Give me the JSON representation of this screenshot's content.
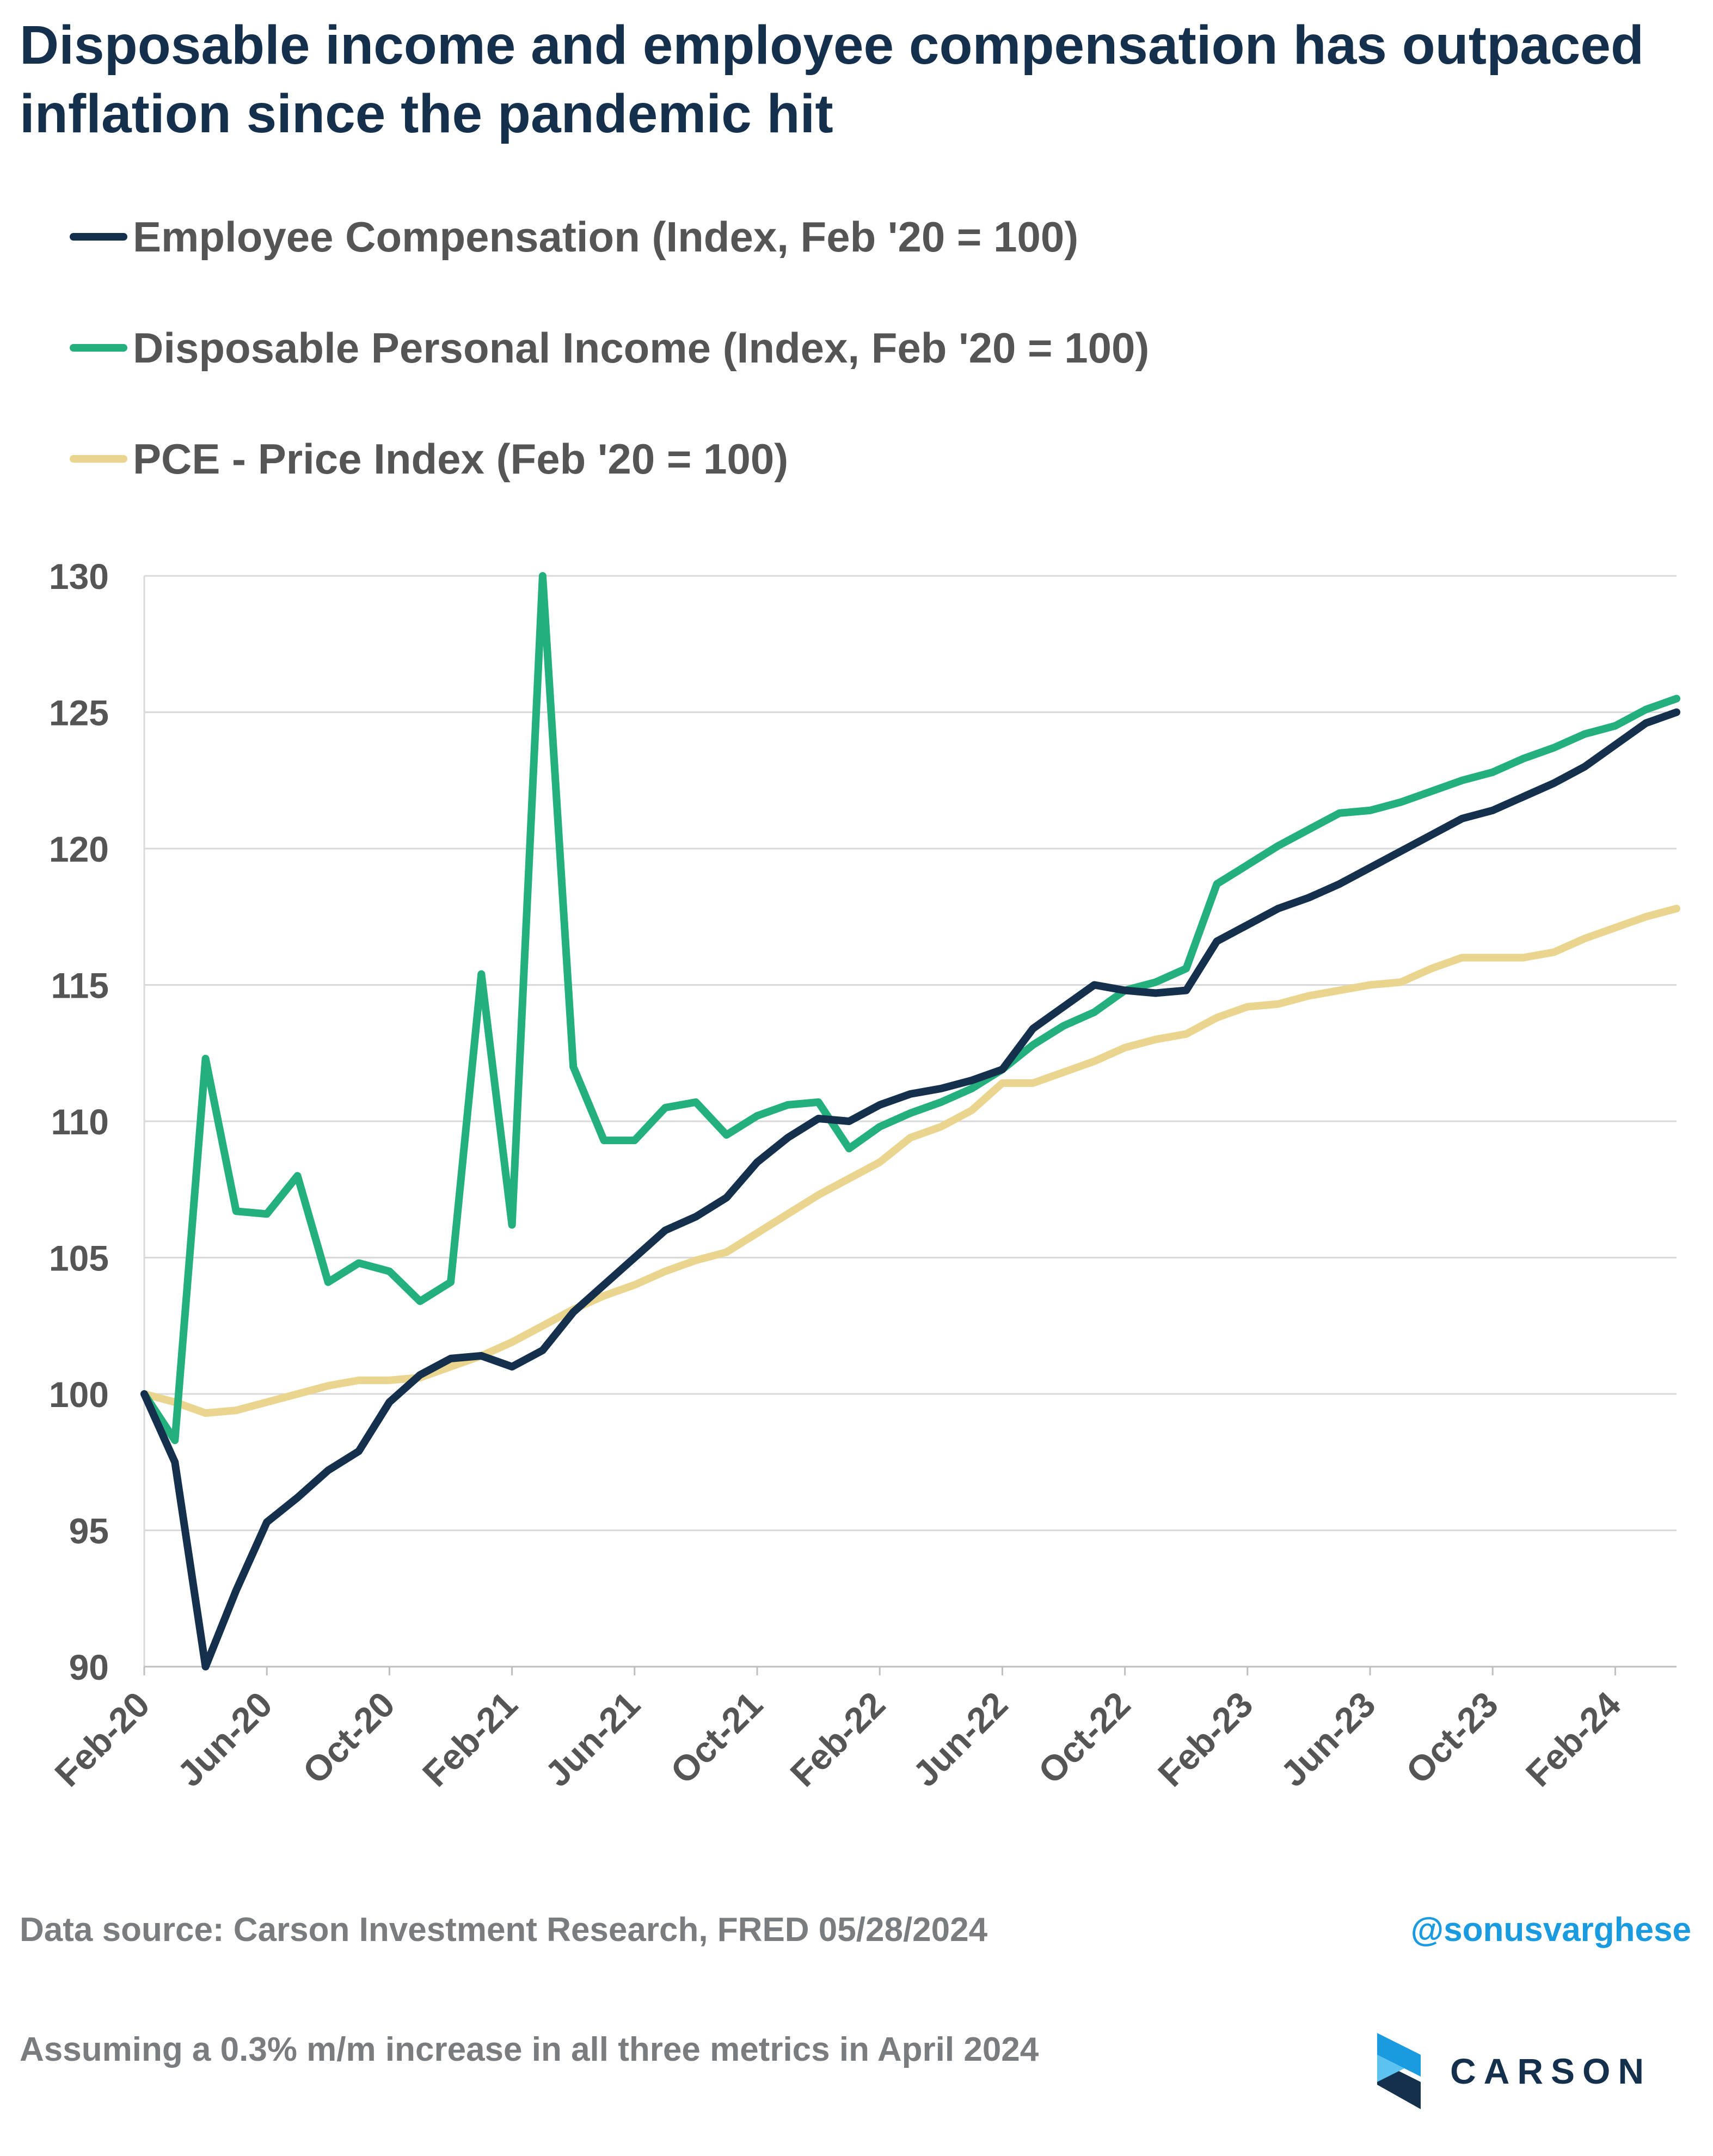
{
  "header": {
    "title": "Disposable income and employee compensation has outpaced inflation since the pandemic hit"
  },
  "colors": {
    "title": "#14304d",
    "employee_compensation": "#14304d",
    "disposable_income": "#23b07d",
    "pce": "#ead58f",
    "grid": "#d9d9d9",
    "axis_text": "#555555",
    "footer_text": "#7a7d80",
    "handle": "#1a9be0"
  },
  "chart_data": {
    "type": "line",
    "title": "",
    "xlabel": "",
    "ylabel": "",
    "ylim": [
      90,
      130
    ],
    "yticks": [
      90,
      95,
      100,
      105,
      110,
      115,
      120,
      125,
      130
    ],
    "x_tick_labels": [
      "Feb-20",
      "Jun-20",
      "Oct-20",
      "Feb-21",
      "Jun-21",
      "Oct-21",
      "Feb-22",
      "Jun-22",
      "Oct-22",
      "Feb-23",
      "Jun-23",
      "Oct-23",
      "Feb-24"
    ],
    "grid": "horizontal",
    "legend_position": "top-left",
    "x_start": "Feb-20",
    "x_end": "Apr-24",
    "series": [
      {
        "name": "Employee Compensation (Index, Feb '20 = 100)",
        "color": "#14304d",
        "values": [
          100,
          97.5,
          90.0,
          92.8,
          95.3,
          96.2,
          97.2,
          97.9,
          99.7,
          100.7,
          101.3,
          101.4,
          101.0,
          101.6,
          103.0,
          104.0,
          105.0,
          106.0,
          106.5,
          107.2,
          108.5,
          109.4,
          110.1,
          110.0,
          110.6,
          111.0,
          111.2,
          111.5,
          111.9,
          113.4,
          114.2,
          115.0,
          114.8,
          114.7,
          114.8,
          116.6,
          117.2,
          117.8,
          118.2,
          118.7,
          119.3,
          119.9,
          120.5,
          121.1,
          121.4,
          121.9,
          122.4,
          123.0,
          123.8,
          124.6,
          125.0
        ]
      },
      {
        "name": "Disposable Personal Income (Index, Feb '20 = 100)",
        "color": "#23b07d",
        "values": [
          100,
          98.3,
          112.3,
          106.7,
          106.6,
          108.0,
          104.1,
          104.8,
          104.5,
          103.4,
          104.1,
          115.4,
          106.2,
          130.0,
          112.0,
          109.3,
          109.3,
          110.5,
          110.7,
          109.5,
          110.2,
          110.6,
          110.7,
          109.0,
          109.8,
          110.3,
          110.7,
          111.2,
          111.9,
          112.8,
          113.5,
          114.0,
          114.8,
          115.1,
          115.6,
          118.7,
          119.4,
          120.1,
          120.7,
          121.3,
          121.4,
          121.7,
          122.1,
          122.5,
          122.8,
          123.3,
          123.7,
          124.2,
          124.5,
          125.1,
          125.5
        ]
      },
      {
        "name": "PCE - Price Index (Feb '20 = 100)",
        "color": "#ead58f",
        "values": [
          100,
          99.7,
          99.3,
          99.4,
          99.7,
          100.0,
          100.3,
          100.5,
          100.5,
          100.6,
          101.0,
          101.4,
          101.9,
          102.5,
          103.1,
          103.6,
          104.0,
          104.5,
          104.9,
          105.2,
          105.9,
          106.6,
          107.3,
          107.9,
          108.5,
          109.4,
          109.8,
          110.4,
          111.4,
          111.4,
          111.8,
          112.2,
          112.7,
          113.0,
          113.2,
          113.8,
          114.2,
          114.3,
          114.6,
          114.8,
          115.0,
          115.1,
          115.6,
          116.0,
          116.0,
          116.0,
          116.2,
          116.7,
          117.1,
          117.5,
          117.8
        ]
      }
    ]
  },
  "footer": {
    "source": "Data source: Carson Investment Research, FRED   05/28/2024",
    "note": "Assuming a 0.3% m/m increase in all three metrics in April 2024",
    "handle": "@sonusvarghese"
  },
  "logo": {
    "text": "CARSON",
    "icon": "carson-logo-icon"
  }
}
